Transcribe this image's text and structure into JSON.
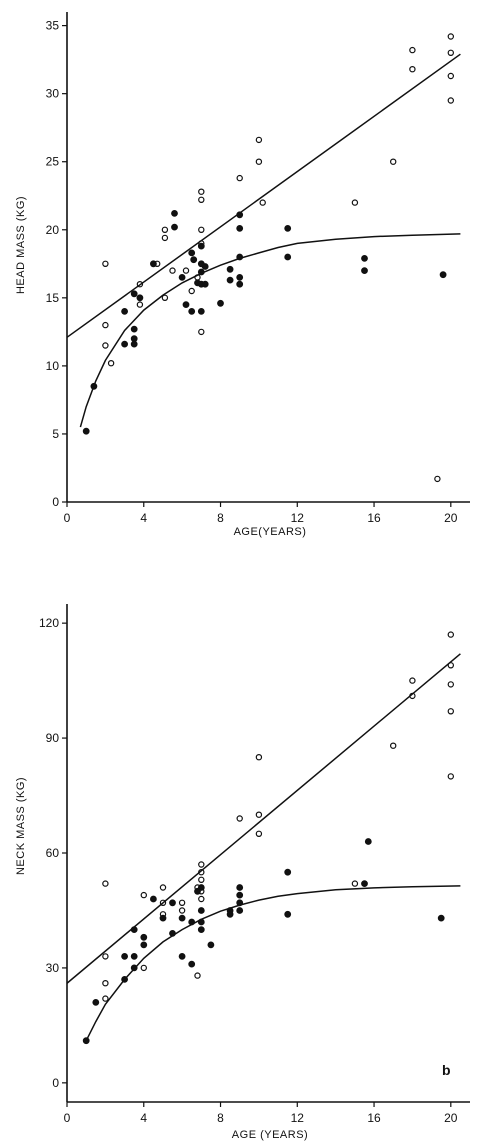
{
  "chart_data": [
    {
      "type": "scatter",
      "panel_letter": "",
      "xlabel": "AGE(YEARS)",
      "ylabel": "HEAD MASS (KG)",
      "xlim": [
        0,
        21
      ],
      "ylim": [
        0,
        36
      ],
      "xticks": [
        "0",
        "4",
        "8",
        "12",
        "16",
        "20"
      ],
      "xtick_values": [
        0,
        4,
        8,
        12,
        16,
        20
      ],
      "yticks": [
        "0",
        "5",
        "10",
        "15",
        "20",
        "25",
        "30",
        "35"
      ],
      "ytick_values": [
        0,
        5,
        10,
        15,
        20,
        25,
        30,
        35
      ],
      "series": [
        {
          "marker": "open",
          "points": [
            [
              2.0,
              17.5
            ],
            [
              2.0,
              13.0
            ],
            [
              2.0,
              11.5
            ],
            [
              2.3,
              10.2
            ],
            [
              3.8,
              16.0
            ],
            [
              3.8,
              14.5
            ],
            [
              4.7,
              17.5
            ],
            [
              5.1,
              20.0
            ],
            [
              5.1,
              19.4
            ],
            [
              5.1,
              15.0
            ],
            [
              5.5,
              17.0
            ],
            [
              6.2,
              17.0
            ],
            [
              6.5,
              15.5
            ],
            [
              6.8,
              16.5
            ],
            [
              7.0,
              22.8
            ],
            [
              7.0,
              22.2
            ],
            [
              7.0,
              20.0
            ],
            [
              7.0,
              19.0
            ],
            [
              7.0,
              12.5
            ],
            [
              9.0,
              23.8
            ],
            [
              10.0,
              26.6
            ],
            [
              10.0,
              25.0
            ],
            [
              10.2,
              22.0
            ],
            [
              15.0,
              22.0
            ],
            [
              17.0,
              25.0
            ],
            [
              18.0,
              33.2
            ],
            [
              18.0,
              31.8
            ],
            [
              20.0,
              34.2
            ],
            [
              20.0,
              33.0
            ],
            [
              20.0,
              31.3
            ],
            [
              20.0,
              29.5
            ],
            [
              19.3,
              1.7
            ]
          ]
        },
        {
          "marker": "filled",
          "points": [
            [
              1.0,
              5.2
            ],
            [
              1.4,
              8.5
            ],
            [
              3.0,
              11.6
            ],
            [
              3.0,
              14.0
            ],
            [
              3.5,
              15.3
            ],
            [
              3.5,
              12.7
            ],
            [
              3.5,
              12.0
            ],
            [
              3.5,
              11.6
            ],
            [
              3.8,
              15.0
            ],
            [
              4.5,
              17.5
            ],
            [
              5.6,
              21.2
            ],
            [
              5.6,
              20.2
            ],
            [
              6.0,
              16.5
            ],
            [
              6.2,
              14.5
            ],
            [
              6.5,
              14.0
            ],
            [
              6.5,
              18.3
            ],
            [
              6.6,
              17.8
            ],
            [
              6.8,
              16.1
            ],
            [
              7.0,
              18.8
            ],
            [
              7.0,
              17.5
            ],
            [
              7.0,
              16.9
            ],
            [
              7.0,
              16.0
            ],
            [
              7.0,
              14.0
            ],
            [
              7.2,
              17.3
            ],
            [
              7.2,
              16.0
            ],
            [
              8.0,
              14.6
            ],
            [
              8.5,
              17.1
            ],
            [
              8.5,
              16.3
            ],
            [
              9.0,
              21.1
            ],
            [
              9.0,
              20.1
            ],
            [
              9.0,
              18.0
            ],
            [
              9.0,
              16.5
            ],
            [
              9.0,
              16.0
            ],
            [
              11.5,
              20.1
            ],
            [
              11.5,
              18.0
            ],
            [
              15.5,
              17.9
            ],
            [
              15.5,
              17.0
            ],
            [
              19.6,
              16.7
            ]
          ]
        }
      ],
      "fit_lines": [
        {
          "kind": "linear",
          "from": [
            0.0,
            12.1
          ],
          "to": [
            20.5,
            32.9
          ]
        },
        {
          "kind": "curve",
          "points": [
            [
              0.7,
              5.5
            ],
            [
              1.0,
              7.0
            ],
            [
              1.5,
              8.9
            ],
            [
              2.0,
              10.4
            ],
            [
              3.0,
              12.6
            ],
            [
              4.0,
              14.1
            ],
            [
              5.0,
              15.2
            ],
            [
              6.0,
              16.1
            ],
            [
              7.0,
              16.8
            ],
            [
              8.0,
              17.4
            ],
            [
              9.0,
              17.9
            ],
            [
              10.0,
              18.3
            ],
            [
              11.0,
              18.7
            ],
            [
              12.0,
              19.0
            ],
            [
              14.0,
              19.3
            ],
            [
              16.0,
              19.5
            ],
            [
              18.0,
              19.6
            ],
            [
              20.5,
              19.7
            ]
          ]
        }
      ]
    },
    {
      "type": "scatter",
      "panel_letter": "b",
      "xlabel": "AGE (YEARS)",
      "ylabel": "NECK MASS (KG)",
      "xlim": [
        0,
        21
      ],
      "ylim": [
        -5,
        125
      ],
      "xticks": [
        "0",
        "4",
        "8",
        "12",
        "16",
        "20"
      ],
      "xtick_values": [
        0,
        4,
        8,
        12,
        16,
        20
      ],
      "yticks": [
        "0",
        "30",
        "60",
        "90",
        "120"
      ],
      "ytick_values": [
        0,
        30,
        60,
        90,
        120
      ],
      "series": [
        {
          "marker": "open",
          "points": [
            [
              2.0,
              52.0
            ],
            [
              2.0,
              33.0
            ],
            [
              2.0,
              26.0
            ],
            [
              2.0,
              22.0
            ],
            [
              4.0,
              49.0
            ],
            [
              4.0,
              30.0
            ],
            [
              5.0,
              51.0
            ],
            [
              5.0,
              47.0
            ],
            [
              5.0,
              44.0
            ],
            [
              6.0,
              47.0
            ],
            [
              6.0,
              45.0
            ],
            [
              6.8,
              51.0
            ],
            [
              6.8,
              28.0
            ],
            [
              7.0,
              57.0
            ],
            [
              7.0,
              55.0
            ],
            [
              7.0,
              53.0
            ],
            [
              7.0,
              50.0
            ],
            [
              7.0,
              48.0
            ],
            [
              9.0,
              69.0
            ],
            [
              10.0,
              85.0
            ],
            [
              10.0,
              70.0
            ],
            [
              10.0,
              65.0
            ],
            [
              15.0,
              52.0
            ],
            [
              17.0,
              88.0
            ],
            [
              18.0,
              105.0
            ],
            [
              18.0,
              101.0
            ],
            [
              20.0,
              117.0
            ],
            [
              20.0,
              109.0
            ],
            [
              20.0,
              104.0
            ],
            [
              20.0,
              97.0
            ],
            [
              20.0,
              80.0
            ]
          ]
        },
        {
          "marker": "filled",
          "points": [
            [
              1.0,
              11.0
            ],
            [
              1.5,
              21.0
            ],
            [
              3.0,
              27.0
            ],
            [
              3.0,
              33.0
            ],
            [
              3.5,
              40.0
            ],
            [
              3.5,
              33.0
            ],
            [
              3.5,
              30.0
            ],
            [
              4.0,
              38.0
            ],
            [
              4.0,
              36.0
            ],
            [
              4.5,
              48.0
            ],
            [
              5.0,
              43.0
            ],
            [
              5.5,
              39.0
            ],
            [
              5.5,
              47.0
            ],
            [
              6.0,
              43.0
            ],
            [
              6.0,
              33.0
            ],
            [
              6.5,
              42.0
            ],
            [
              6.5,
              31.0
            ],
            [
              6.8,
              50.0
            ],
            [
              7.0,
              45.0
            ],
            [
              7.0,
              42.0
            ],
            [
              7.0,
              40.0
            ],
            [
              7.0,
              51.0
            ],
            [
              7.5,
              36.0
            ],
            [
              8.5,
              45.0
            ],
            [
              8.5,
              44.0
            ],
            [
              9.0,
              51.0
            ],
            [
              9.0,
              49.0
            ],
            [
              9.0,
              47.0
            ],
            [
              9.0,
              45.0
            ],
            [
              11.5,
              55.0
            ],
            [
              11.5,
              44.0
            ],
            [
              15.5,
              52.0
            ],
            [
              15.7,
              63.0
            ],
            [
              19.5,
              43.0
            ]
          ]
        }
      ],
      "fit_lines": [
        {
          "kind": "linear",
          "from": [
            0.0,
            26.0
          ],
          "to": [
            20.5,
            112.0
          ]
        },
        {
          "kind": "curve",
          "points": [
            [
              1.0,
              11.0
            ],
            [
              1.5,
              16.0
            ],
            [
              2.0,
              20.5
            ],
            [
              3.0,
              27.0
            ],
            [
              4.0,
              32.5
            ],
            [
              5.0,
              36.8
            ],
            [
              6.0,
              40.0
            ],
            [
              7.0,
              42.7
            ],
            [
              8.0,
              44.8
            ],
            [
              9.0,
              46.4
            ],
            [
              10.0,
              47.7
            ],
            [
              11.0,
              48.7
            ],
            [
              12.0,
              49.4
            ],
            [
              14.0,
              50.4
            ],
            [
              16.0,
              50.9
            ],
            [
              18.0,
              51.2
            ],
            [
              20.5,
              51.4
            ]
          ]
        }
      ]
    }
  ]
}
